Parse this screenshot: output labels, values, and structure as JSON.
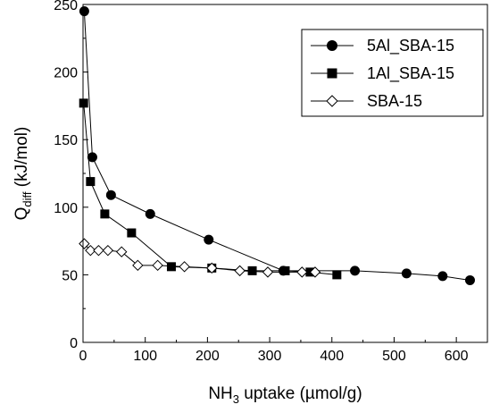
{
  "chart_data": {
    "type": "scatter",
    "xlabel": {
      "main": "NH",
      "sub": "3",
      "rest": " uptake (µmol/g)"
    },
    "ylabel": {
      "main": "Q",
      "sub": "diff",
      "rest": " (kJ/mol)"
    },
    "xlim": [
      0,
      650
    ],
    "ylim": [
      0,
      250
    ],
    "x_ticks": [
      0,
      100,
      200,
      300,
      400,
      500,
      600
    ],
    "y_ticks": [
      0,
      50,
      100,
      150,
      200,
      250
    ],
    "grid": false,
    "legend_position": "top-right",
    "series": [
      {
        "name": "5Al_SBA-15",
        "marker": "circle",
        "filled": true,
        "x": [
          2,
          15,
          45,
          108,
          202,
          322,
          437,
          520,
          578,
          622
        ],
        "y": [
          245,
          137,
          109,
          95,
          76,
          53,
          53,
          51,
          49,
          46
        ]
      },
      {
        "name": "1Al_SBA-15",
        "marker": "square",
        "filled": true,
        "x": [
          1,
          12,
          35,
          78,
          142,
          207,
          272,
          325,
          365,
          408
        ],
        "y": [
          177,
          119,
          95,
          81,
          56,
          55,
          53,
          53,
          52,
          50
        ]
      },
      {
        "name": "SBA-15",
        "marker": "diamond",
        "filled": false,
        "x": [
          2,
          12,
          25,
          40,
          62,
          88,
          120,
          163,
          207,
          252,
          297,
          352,
          373
        ],
        "y": [
          73,
          68,
          68,
          68,
          67,
          57,
          57,
          56,
          55,
          53,
          52,
          52,
          52
        ]
      }
    ]
  }
}
